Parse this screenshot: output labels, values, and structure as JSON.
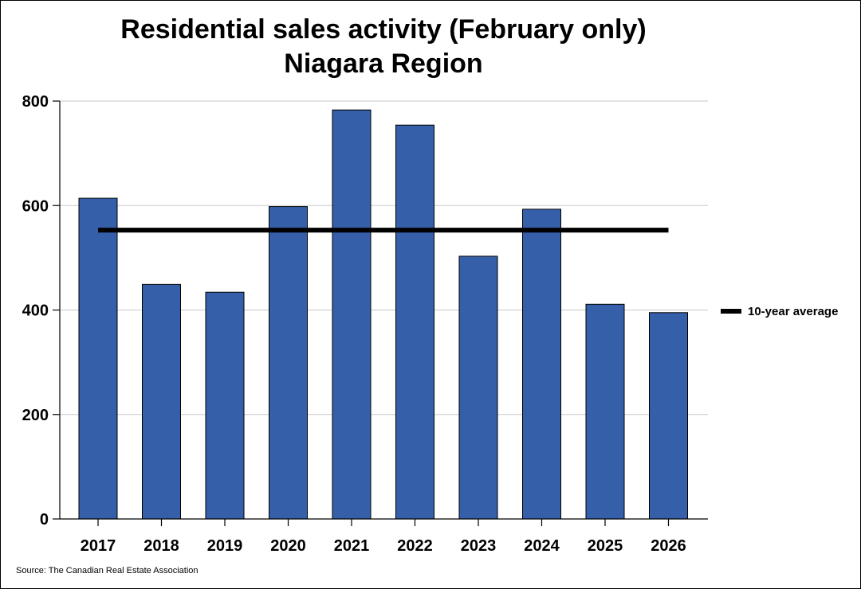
{
  "chart_data": {
    "type": "bar",
    "title_lines": [
      "Residential sales activity (February only)",
      "Niagara Region"
    ],
    "categories": [
      "2017",
      "2018",
      "2019",
      "2020",
      "2021",
      "2022",
      "2023",
      "2024",
      "2025",
      "2026"
    ],
    "series": [
      {
        "values": [
          614,
          449,
          434,
          598,
          783,
          754,
          503,
          593,
          411,
          395
        ],
        "color": "#355fa9"
      }
    ],
    "reference_line": {
      "name": "10-year average",
      "value": 553,
      "color": "#000000"
    },
    "yticks": [
      "0",
      "200",
      "400",
      "600",
      "800"
    ],
    "ylim": [
      0,
      800
    ],
    "grid": true,
    "legend": "right",
    "source": "Source: The Canadian Real Estate Association"
  }
}
